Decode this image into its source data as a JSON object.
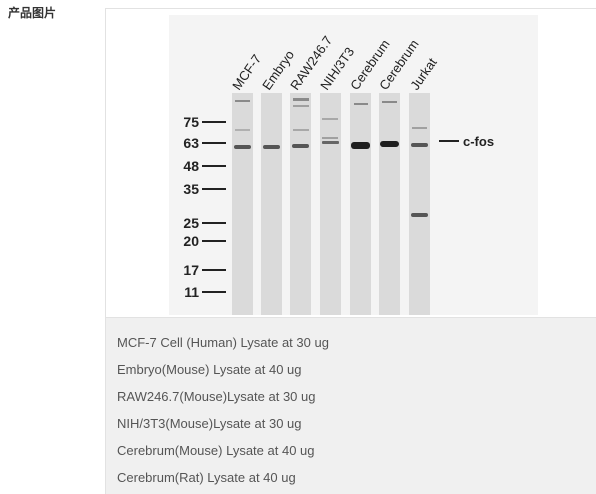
{
  "section": {
    "label": "产品图片"
  },
  "blot": {
    "lane_labels": [
      "MCF-7",
      "Embryo",
      "RAW246.7",
      "NIH/3T3",
      "Cerebrum",
      "Cerebrum",
      "Jurkat"
    ],
    "markers": [
      "75",
      "63",
      "48",
      "35",
      "25",
      "20",
      "17",
      "11"
    ],
    "band_label": "c-fos"
  },
  "captions": [
    "MCF-7 Cell (Human) Lysate at 30 ug",
    "Embryo(Mouse) Lysate at 40 ug",
    "RAW246.7(Mouse)Lysate at 30 ug",
    "NIH/3T3(Mouse)Lysate at 30 ug",
    "Cerebrum(Mouse) Lysate at 40 ug",
    "Cerebrum(Rat) Lysate at 40 ug"
  ],
  "colors": {
    "lane": "#dcdcdc",
    "band": "#2a2a2a",
    "text": "#555555"
  }
}
